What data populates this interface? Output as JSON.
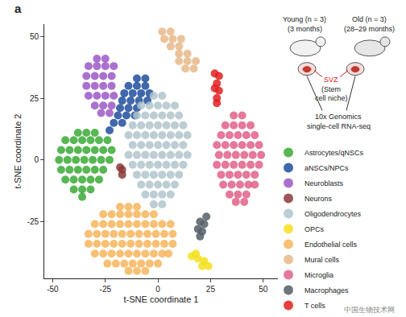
{
  "chart_data": {
    "type": "scatter",
    "x_label": "t-SNE coordinate 1",
    "y_label": "t-SNE coordinate 2",
    "xlim": [
      -54,
      57
    ],
    "xticks": [
      -50,
      -25,
      0,
      25,
      50
    ],
    "ylim": [
      -48,
      55
    ],
    "yticks": [
      -25,
      0,
      25,
      50
    ],
    "grid": false,
    "legend": "right",
    "marker": "circle",
    "annotations": [
      "a",
      "Young (n = 3)",
      "(3 months)",
      "Old (n = 3)",
      "(28–29 months)",
      "SVZ",
      "(Stem",
      "cell niche)",
      "10x Genomics",
      "single-cell RNA-seq",
      "中国生物技术网"
    ],
    "series": [
      {
        "name": "Astrocytes/qNSCs",
        "color": "#3aaa35",
        "x": [
          -38,
          -34,
          -30,
          -44,
          -40,
          -36,
          -32,
          -28,
          -24,
          -46,
          -42,
          -38,
          -34,
          -30,
          -26,
          -22,
          -47,
          -43,
          -39,
          -35,
          -31,
          -27,
          -23,
          -46,
          -42,
          -38,
          -34,
          -30,
          -26,
          -44,
          -40,
          -36,
          -32,
          -28,
          -40,
          -36,
          -32,
          -36
        ],
        "y": [
          11,
          11,
          11,
          8,
          8,
          8,
          8,
          8,
          8,
          4,
          4,
          4,
          4,
          4,
          4,
          4,
          0,
          0,
          0,
          0,
          0,
          0,
          0,
          -4,
          -4,
          -4,
          -4,
          -4,
          -4,
          -8,
          -8,
          -8,
          -8,
          -8,
          -12,
          -12,
          -12,
          -15
        ]
      },
      {
        "name": "aNSCs/NPCs",
        "color": "#1f4e9c",
        "x": [
          -10,
          -6,
          -14,
          -10,
          -6,
          -16,
          -12,
          -8,
          -4,
          -17,
          -13,
          -9,
          -5,
          -18,
          -14,
          -10,
          -19,
          -15,
          -11,
          -21,
          -17,
          -23
        ],
        "y": [
          33,
          33,
          30,
          30,
          30,
          27,
          27,
          27,
          27,
          24,
          24,
          24,
          24,
          21,
          21,
          21,
          18,
          18,
          18,
          15,
          15,
          12
        ]
      },
      {
        "name": "Neuroblasts",
        "color": "#9b59c6",
        "x": [
          -29,
          -25,
          -33,
          -29,
          -25,
          -21,
          -34,
          -30,
          -26,
          -22,
          -34,
          -30,
          -26,
          -22,
          -33,
          -29,
          -25,
          -21,
          -30,
          -26,
          -22,
          -27,
          -23
        ],
        "y": [
          41,
          41,
          38,
          38,
          38,
          38,
          34,
          34,
          34,
          34,
          30,
          30,
          30,
          30,
          26,
          26,
          26,
          26,
          22,
          22,
          22,
          19,
          19
        ]
      },
      {
        "name": "Neurons",
        "color": "#8b3a3a",
        "x": [
          -17,
          -17,
          -18
        ],
        "y": [
          -4,
          -6,
          -3
        ]
      },
      {
        "name": "Oligodendrocytes",
        "color": "#b0c4cc",
        "x": [
          -2,
          2,
          -8,
          -4,
          0,
          4,
          8,
          -10,
          -6,
          -2,
          2,
          6,
          10,
          -12,
          -8,
          -4,
          0,
          4,
          8,
          12,
          -14,
          -10,
          -6,
          -2,
          2,
          6,
          10,
          14,
          -12,
          -8,
          -4,
          0,
          4,
          8,
          12,
          -14,
          -10,
          -6,
          -2,
          2,
          6,
          10,
          14,
          -12,
          -8,
          -4,
          0,
          4,
          8,
          12,
          -10,
          -6,
          -2,
          2,
          6,
          10,
          -8,
          -4,
          0,
          4,
          8,
          -6,
          -2,
          2,
          6,
          -2,
          2
        ],
        "y": [
          26,
          26,
          22,
          22,
          22,
          22,
          22,
          18,
          18,
          18,
          18,
          18,
          18,
          14,
          14,
          14,
          14,
          14,
          14,
          14,
          10,
          10,
          10,
          10,
          10,
          10,
          10,
          10,
          6,
          6,
          6,
          6,
          6,
          6,
          6,
          2,
          2,
          2,
          2,
          2,
          2,
          2,
          2,
          -2,
          -2,
          -2,
          -2,
          -2,
          -2,
          -2,
          -6,
          -6,
          -6,
          -6,
          -6,
          -6,
          -10,
          -10,
          -10,
          -10,
          -10,
          -14,
          -14,
          -14,
          -14,
          -18,
          -18
        ]
      },
      {
        "name": "OPCs",
        "color": "#f4e11c",
        "x": [
          16,
          19,
          22,
          24,
          18,
          21
        ],
        "y": [
          -39,
          -40,
          -41,
          -43,
          -38,
          -43
        ]
      },
      {
        "name": "Endothelial cells",
        "color": "#f7b55c",
        "x": [
          -18,
          -14,
          -10,
          -26,
          -22,
          -18,
          -14,
          -10,
          -6,
          -2,
          -30,
          -26,
          -22,
          -18,
          -14,
          -10,
          -6,
          -2,
          2,
          6,
          -33,
          -29,
          -25,
          -21,
          -17,
          -13,
          -9,
          -5,
          -1,
          3,
          7,
          -33,
          -29,
          -25,
          -21,
          -17,
          -13,
          -9,
          -5,
          -1,
          3,
          7,
          -30,
          -26,
          -22,
          -18,
          -14,
          -10,
          -6,
          -2,
          2,
          5,
          -24,
          -20,
          -16,
          -12,
          -8,
          -4,
          0,
          -14,
          -10,
          -6
        ],
        "y": [
          -19,
          -19,
          -19,
          -22,
          -22,
          -22,
          -22,
          -22,
          -22,
          -22,
          -26,
          -26,
          -26,
          -26,
          -26,
          -26,
          -26,
          -26,
          -26,
          -26,
          -30,
          -30,
          -30,
          -30,
          -30,
          -30,
          -30,
          -30,
          -30,
          -30,
          -30,
          -34,
          -34,
          -34,
          -34,
          -34,
          -34,
          -34,
          -34,
          -34,
          -34,
          -34,
          -38,
          -38,
          -38,
          -38,
          -38,
          -38,
          -38,
          -38,
          -38,
          -38,
          -42,
          -42,
          -42,
          -42,
          -42,
          -42,
          -42,
          -45,
          -45,
          -45
        ]
      },
      {
        "name": "Mural cells",
        "color": "#e8b98a",
        "x": [
          2,
          6,
          3,
          7,
          11,
          6,
          10,
          10,
          14,
          10,
          14,
          18,
          13,
          17
        ],
        "y": [
          52,
          52,
          49,
          49,
          49,
          46,
          46,
          43,
          43,
          40,
          40,
          40,
          37,
          37
        ]
      },
      {
        "name": "Microglia",
        "color": "#e0608a",
        "x": [
          36,
          40,
          32,
          36,
          40,
          44,
          30,
          34,
          38,
          42,
          46,
          28,
          32,
          36,
          40,
          44,
          48,
          29,
          33,
          37,
          41,
          45,
          49,
          28,
          32,
          36,
          40,
          44,
          48,
          30,
          34,
          38,
          42,
          46,
          31,
          35,
          39,
          43,
          46,
          34,
          38,
          42,
          37,
          41
        ],
        "y": [
          18,
          18,
          14,
          14,
          14,
          14,
          10,
          10,
          10,
          10,
          10,
          6,
          6,
          6,
          6,
          6,
          6,
          2,
          2,
          2,
          2,
          2,
          2,
          -2,
          -2,
          -2,
          -2,
          -2,
          -2,
          -6,
          -6,
          -6,
          -6,
          -6,
          -10,
          -10,
          -10,
          -10,
          -10,
          -14,
          -14,
          -14,
          -17,
          -17
        ]
      },
      {
        "name": "Macrophages",
        "color": "#555e66",
        "x": [
          20,
          22,
          19,
          21,
          23,
          20
        ],
        "y": [
          -25,
          -26,
          -28,
          -29,
          -23,
          -31
        ]
      },
      {
        "name": "T cells",
        "color": "#e02020",
        "x": [
          27,
          29,
          28,
          27,
          29,
          28,
          28
        ],
        "y": [
          35,
          34,
          31,
          29,
          28,
          25,
          23
        ]
      }
    ]
  }
}
